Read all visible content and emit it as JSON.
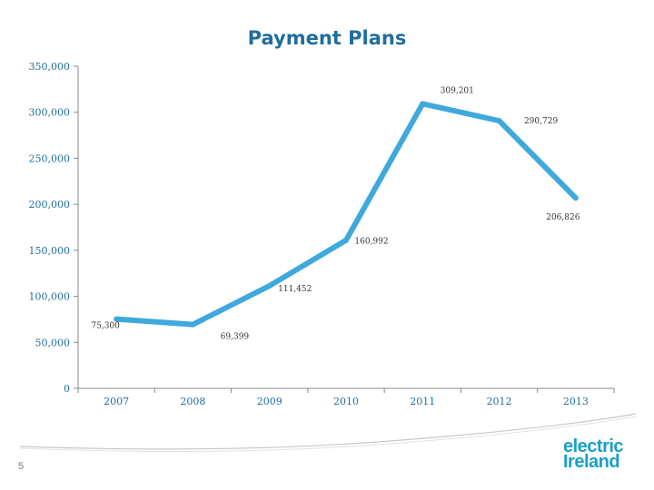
{
  "title": "Payment Plans",
  "page_number": "5",
  "logo": {
    "line1": "electric",
    "line2": "Ireland"
  },
  "colors": {
    "line": "#3fa9dc",
    "title": "#1f6e9c",
    "axis": "#8a8a8a",
    "logo": "#1aa0c8"
  },
  "chart_data": {
    "type": "line",
    "title": "Payment Plans",
    "categories": [
      "2007",
      "2008",
      "2009",
      "2010",
      "2011",
      "2012",
      "2013"
    ],
    "series": [
      {
        "values": [
          75300,
          69399,
          111452,
          160992,
          309201,
          290729,
          206826
        ]
      }
    ],
    "data_labels": [
      "75,300",
      "69,399",
      "111,452",
      "160,992",
      "309,201",
      "290,729",
      "206,826"
    ],
    "y_ticks": [
      0,
      50000,
      100000,
      150000,
      200000,
      250000,
      300000,
      350000
    ],
    "y_tick_labels": [
      "0",
      "50,000",
      "100,000",
      "150,000",
      "200,000",
      "250,000",
      "300,000",
      "350,000"
    ],
    "ylim": [
      0,
      350000
    ],
    "xlabel": "",
    "ylabel": "",
    "grid": false,
    "legend": "none"
  }
}
